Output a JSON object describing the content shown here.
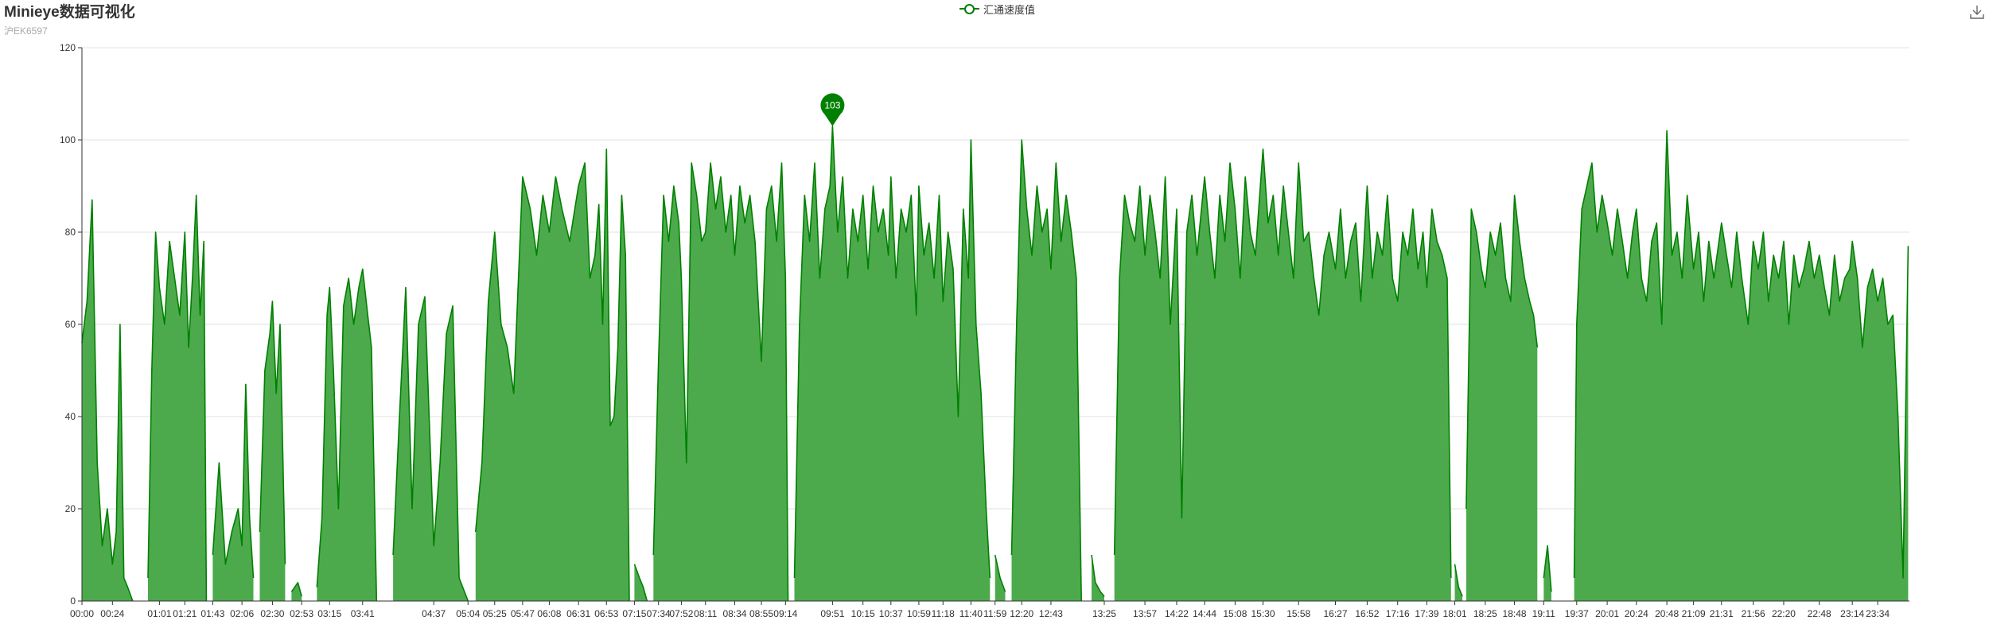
{
  "chart_data": {
    "type": "area",
    "title": "Minieye数据可视化",
    "subtitle": "沪EK6597",
    "legend": {
      "entries": [
        "汇通速度值"
      ],
      "placement": "top-center"
    },
    "colors": {
      "line": "#008000",
      "fill": "#4caa4c",
      "grid": "#e0e0e0",
      "axis": "#333333"
    },
    "ylim": [
      0,
      120
    ],
    "yticks": [
      0,
      20,
      40,
      60,
      80,
      100,
      120
    ],
    "grid": true,
    "xticks": [
      "00:00",
      "00:24",
      "01:01",
      "01:21",
      "01:43",
      "02:06",
      "02:30",
      "02:53",
      "03:15",
      "03:41",
      "04:37",
      "05:04",
      "05:25",
      "05:47",
      "06:08",
      "06:31",
      "06:53",
      "07:15",
      "07:34",
      "07:52",
      "08:11",
      "08:34",
      "08:55",
      "09:14",
      "09:51",
      "10:15",
      "10:37",
      "10:59",
      "11:18",
      "11:40",
      "11:59",
      "12:20",
      "12:43",
      "13:25",
      "13:57",
      "14:22",
      "14:44",
      "15:08",
      "15:30",
      "15:58",
      "16:27",
      "16:52",
      "17:16",
      "17:39",
      "18:01",
      "18:25",
      "18:48",
      "19:11",
      "19:37",
      "20:01",
      "20:24",
      "20:48",
      "21:09",
      "21:31",
      "21:56",
      "22:20",
      "22:48",
      "23:14",
      "23:34"
    ],
    "max_marker": {
      "label": "103",
      "value": 103,
      "x": "09:51"
    },
    "series": [
      {
        "name": "汇通速度值",
        "segments": [
          {
            "x": [
              "00:00",
              "00:04",
              "00:08",
              "00:12",
              "00:16",
              "00:20",
              "00:24",
              "00:27",
              "00:30",
              "00:33",
              "00:36",
              "00:40"
            ],
            "y": [
              56,
              65,
              87,
              30,
              12,
              20,
              8,
              15,
              60,
              5,
              3,
              0
            ]
          },
          {
            "x": [
              "00:52",
              "00:55",
              "00:58",
              "01:01",
              "01:05",
              "01:09",
              "01:13",
              "01:17",
              "01:21",
              "01:24",
              "01:27",
              "01:30",
              "01:33",
              "01:36",
              "01:38"
            ],
            "y": [
              5,
              50,
              80,
              68,
              60,
              78,
              70,
              62,
              80,
              55,
              70,
              88,
              62,
              78,
              0
            ]
          },
          {
            "x": [
              "01:43",
              "01:48",
              "01:53",
              "01:58",
              "02:03",
              "02:06",
              "02:09",
              "02:12",
              "02:15"
            ],
            "y": [
              10,
              30,
              8,
              15,
              20,
              12,
              47,
              18,
              5
            ]
          },
          {
            "x": [
              "02:20",
              "02:24",
              "02:28",
              "02:30",
              "02:33",
              "02:36",
              "02:40"
            ],
            "y": [
              15,
              50,
              58,
              65,
              45,
              60,
              8
            ]
          },
          {
            "x": [
              "02:45",
              "02:50",
              "02:53"
            ],
            "y": [
              2,
              4,
              1
            ]
          },
          {
            "x": [
              "03:05",
              "03:09",
              "03:13",
              "03:15",
              "03:18",
              "03:22",
              "03:26",
              "03:30",
              "03:34",
              "03:38",
              "03:41",
              "03:45",
              "03:48",
              "03:52"
            ],
            "y": [
              3,
              18,
              62,
              68,
              50,
              20,
              64,
              70,
              60,
              68,
              72,
              62,
              55,
              0
            ]
          },
          {
            "x": [
              "04:05",
              "04:10",
              "04:15",
              "04:20",
              "04:25",
              "04:30",
              "04:37",
              "04:42",
              "04:47",
              "04:52",
              "04:57",
              "05:04"
            ],
            "y": [
              10,
              40,
              68,
              20,
              60,
              66,
              12,
              30,
              58,
              64,
              5,
              0
            ]
          },
          {
            "x": [
              "05:10",
              "05:15",
              "05:20",
              "05:25",
              "05:30",
              "05:35",
              "05:40",
              "05:47",
              "05:53",
              "05:58",
              "06:03",
              "06:08",
              "06:13",
              "06:18",
              "06:24",
              "06:31",
              "06:36",
              "06:40",
              "06:44",
              "06:47",
              "06:50",
              "06:53",
              "06:56",
              "06:59",
              "07:02",
              "07:05",
              "07:08",
              "07:11"
            ],
            "y": [
              15,
              30,
              65,
              80,
              60,
              55,
              45,
              92,
              85,
              75,
              88,
              80,
              92,
              85,
              78,
              90,
              95,
              70,
              75,
              86,
              60,
              98,
              38,
              40,
              55,
              88,
              75,
              0
            ]
          },
          {
            "x": [
              "07:15",
              "07:19",
              "07:22",
              "07:25"
            ],
            "y": [
              8,
              5,
              3,
              0
            ]
          },
          {
            "x": [
              "07:30",
              "07:34",
              "07:38",
              "07:42",
              "07:46",
              "07:50",
              "07:52",
              "07:56",
              "08:00",
              "08:04",
              "08:08",
              "08:11",
              "08:15",
              "08:19",
              "08:23",
              "08:27",
              "08:31",
              "08:34",
              "08:38",
              "08:42",
              "08:46",
              "08:50",
              "08:55",
              "08:59",
              "09:03",
              "09:07",
              "09:11",
              "09:14",
              "09:16"
            ],
            "y": [
              10,
              52,
              88,
              78,
              90,
              82,
              70,
              30,
              95,
              88,
              78,
              80,
              95,
              85,
              92,
              80,
              88,
              75,
              90,
              82,
              88,
              78,
              52,
              85,
              90,
              78,
              95,
              70,
              0
            ]
          },
          {
            "x": [
              "09:21",
              "09:25",
              "09:29",
              "09:33",
              "09:37",
              "09:41",
              "09:45",
              "09:49",
              "09:51",
              "09:55",
              "09:59",
              "10:03",
              "10:07",
              "10:11",
              "10:15",
              "10:19",
              "10:23",
              "10:27",
              "10:31",
              "10:35",
              "10:37",
              "10:41",
              "10:45",
              "10:49",
              "10:53",
              "10:57",
              "10:59",
              "11:03",
              "11:07",
              "11:11",
              "11:15",
              "11:18",
              "11:22",
              "11:26",
              "11:30",
              "11:34",
              "11:38",
              "11:40",
              "11:44",
              "11:48",
              "11:52",
              "11:55"
            ],
            "y": [
              5,
              60,
              88,
              78,
              95,
              70,
              85,
              90,
              103,
              80,
              92,
              70,
              85,
              78,
              88,
              72,
              90,
              80,
              85,
              75,
              92,
              70,
              85,
              80,
              88,
              62,
              90,
              75,
              82,
              70,
              88,
              65,
              80,
              72,
              40,
              85,
              70,
              100,
              60,
              45,
              20,
              5
            ]
          },
          {
            "x": [
              "11:59",
              "12:03",
              "12:07"
            ],
            "y": [
              10,
              5,
              2
            ]
          },
          {
            "x": [
              "12:12",
              "12:16",
              "12:20",
              "12:24",
              "12:28",
              "12:32",
              "12:36",
              "12:40",
              "12:43",
              "12:47",
              "12:51",
              "12:55",
              "12:59",
              "13:03",
              "13:07"
            ],
            "y": [
              10,
              60,
              100,
              85,
              75,
              90,
              80,
              85,
              72,
              95,
              78,
              88,
              80,
              70,
              0
            ]
          },
          {
            "x": [
              "13:15",
              "13:18",
              "13:22",
              "13:25"
            ],
            "y": [
              10,
              4,
              2,
              1
            ]
          },
          {
            "x": [
              "13:33",
              "13:37",
              "13:41",
              "13:45",
              "13:49",
              "13:53",
              "13:57",
              "14:01",
              "14:05",
              "14:09",
              "14:13",
              "14:17",
              "14:22",
              "14:26",
              "14:30",
              "14:34",
              "14:38",
              "14:44",
              "14:48",
              "14:52",
              "14:56",
              "15:00",
              "15:04",
              "15:08",
              "15:12",
              "15:16",
              "15:20",
              "15:24",
              "15:30",
              "15:34",
              "15:38",
              "15:42",
              "15:46",
              "15:50",
              "15:54",
              "15:58",
              "16:02",
              "16:06",
              "16:10",
              "16:14",
              "16:18",
              "16:22",
              "16:27",
              "16:31",
              "16:35",
              "16:39",
              "16:43",
              "16:47",
              "16:52",
              "16:56",
              "17:00",
              "17:04",
              "17:08",
              "17:12",
              "17:16",
              "17:20",
              "17:24",
              "17:28",
              "17:32",
              "17:36",
              "17:39",
              "17:43",
              "17:47",
              "17:51",
              "17:55",
              "17:58"
            ],
            "y": [
              10,
              70,
              88,
              82,
              78,
              90,
              75,
              88,
              80,
              70,
              92,
              60,
              85,
              18,
              80,
              88,
              75,
              92,
              80,
              70,
              88,
              78,
              95,
              85,
              70,
              92,
              80,
              75,
              98,
              82,
              88,
              75,
              90,
              80,
              70,
              95,
              78,
              80,
              70,
              62,
              75,
              80,
              72,
              85,
              70,
              78,
              82,
              65,
              90,
              70,
              80,
              75,
              88,
              70,
              65,
              80,
              75,
              85,
              72,
              80,
              68,
              85,
              78,
              75,
              70,
              5
            ]
          },
          {
            "x": [
              "18:01",
              "18:04",
              "18:07"
            ],
            "y": [
              8,
              3,
              1
            ]
          },
          {
            "x": [
              "18:10",
              "18:14",
              "18:18",
              "18:22",
              "18:25",
              "18:29",
              "18:33",
              "18:37",
              "18:41",
              "18:45",
              "18:48",
              "18:52",
              "18:56",
              "19:00",
              "19:03",
              "19:06"
            ],
            "y": [
              20,
              85,
              80,
              72,
              68,
              80,
              75,
              82,
              70,
              65,
              88,
              78,
              70,
              65,
              62,
              55
            ]
          },
          {
            "x": [
              "19:11",
              "19:14",
              "19:17"
            ],
            "y": [
              5,
              12,
              2
            ]
          },
          {
            "x": [
              "19:35",
              "19:37",
              "19:41",
              "19:45",
              "19:49",
              "19:53",
              "19:57",
              "20:01",
              "20:05",
              "20:09",
              "20:13",
              "20:17",
              "20:21",
              "20:24",
              "20:28",
              "20:32",
              "20:36",
              "20:40",
              "20:44",
              "20:48",
              "20:52",
              "20:56",
              "21:00",
              "21:04",
              "21:09",
              "21:13",
              "21:17",
              "21:21",
              "21:25",
              "21:31",
              "21:35",
              "21:39",
              "21:43",
              "21:47",
              "21:52",
              "21:56",
              "22:00",
              "22:04",
              "22:08",
              "22:12",
              "22:16",
              "22:20",
              "22:24",
              "22:28",
              "22:32",
              "22:36",
              "22:40",
              "22:44",
              "22:48",
              "22:52",
              "22:56",
              "23:00",
              "23:04",
              "23:08",
              "23:12",
              "23:14",
              "23:18",
              "23:22",
              "23:26",
              "23:30",
              "23:34",
              "23:38",
              "23:42",
              "23:46",
              "23:50",
              "23:54",
              "23:58"
            ],
            "y": [
              5,
              60,
              85,
              90,
              95,
              80,
              88,
              82,
              75,
              85,
              78,
              70,
              80,
              85,
              70,
              65,
              78,
              82,
              60,
              102,
              75,
              80,
              70,
              88,
              72,
              80,
              65,
              78,
              70,
              82,
              75,
              68,
              80,
              70,
              60,
              78,
              72,
              80,
              65,
              75,
              70,
              78,
              60,
              75,
              68,
              72,
              78,
              70,
              75,
              68,
              62,
              75,
              65,
              70,
              72,
              78,
              70,
              55,
              68,
              72,
              65,
              70,
              60,
              62,
              40,
              5,
              77
            ]
          }
        ]
      }
    ]
  },
  "toolbar": {
    "download_icon": "download-icon"
  }
}
